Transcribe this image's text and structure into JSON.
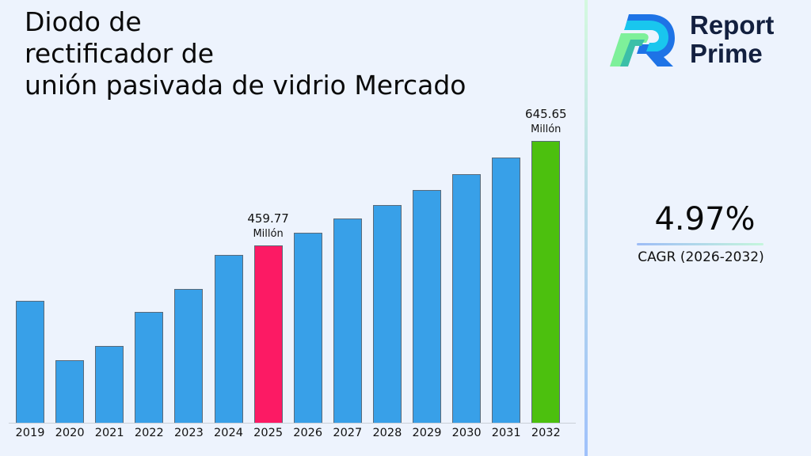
{
  "header": {
    "title_lines": [
      "Diodo de",
      "rectificador de",
      "unión pasivada de vidrio Mercado"
    ]
  },
  "brand": {
    "line1": "Report",
    "line2": "Prime",
    "icon": "report-prime-logo-icon"
  },
  "cagr": {
    "value": "4.97%",
    "label": "CAGR (2026-2032)"
  },
  "colors": {
    "bar_default": "#38a0e8",
    "bar_highlight_2025": "#fc1a64",
    "bar_highlight_2032": "#4cc00e",
    "background": "#edf3fd"
  },
  "annotations": {
    "a2025": {
      "value": "459.77",
      "unit": "Millón"
    },
    "a2032": {
      "value": "645.65",
      "unit": "Millón"
    }
  },
  "chart_data": {
    "type": "bar",
    "title": "Diodo de rectificador de unión pasivada de vidrio Mercado",
    "xlabel": "",
    "ylabel": "",
    "unit": "Millón",
    "categories": [
      "2019",
      "2020",
      "2021",
      "2022",
      "2023",
      "2024",
      "2025",
      "2026",
      "2027",
      "2028",
      "2029",
      "2030",
      "2031",
      "2032"
    ],
    "values": [
      361.3,
      255.6,
      281.0,
      341.5,
      382.4,
      442.9,
      459.77,
      482.6,
      506.6,
      531.8,
      558.2,
      586.0,
      615.1,
      645.65
    ],
    "highlighted": {
      "2025": "#fc1a64",
      "2032": "#4cc00e"
    },
    "data_labels": {
      "2025": "459.77 Millón",
      "2032": "645.65 Millón"
    },
    "ylim": [
      144,
      700
    ],
    "grid": false,
    "legend": null,
    "cagr": "4.97% (2026-2032)"
  }
}
